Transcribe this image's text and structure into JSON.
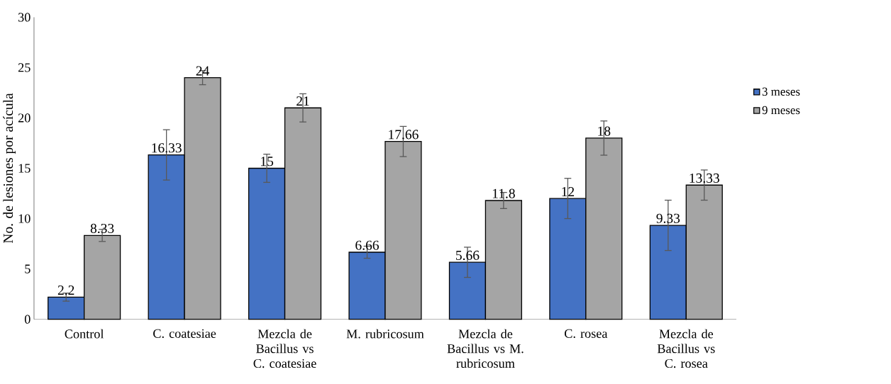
{
  "chart_data": {
    "type": "bar",
    "ylabel": "No. de lesiones por acícula",
    "categories": [
      "Control",
      "C. coatesiae",
      "Mezcla de Bacillus vs C. coatesiae",
      "M. rubricosum",
      "Mezcla de Bacillus vs M. rubricosum",
      "C. rosea",
      "Mezcla de Bacillus vs C. rosea"
    ],
    "series": [
      {
        "name": "3 meses",
        "color": "#4472c4",
        "values": [
          2.2,
          16.33,
          15,
          6.66,
          5.66,
          12,
          9.33
        ],
        "errors": [
          0.4,
          2.5,
          1.4,
          0.6,
          1.5,
          2.0,
          2.5
        ]
      },
      {
        "name": "9 meses",
        "color": "#a5a5a5",
        "values": [
          8.33,
          24,
          21,
          17.66,
          11.8,
          18,
          13.33
        ],
        "errors": [
          0.6,
          0.7,
          1.4,
          1.5,
          0.8,
          1.7,
          1.5
        ]
      }
    ],
    "ylim": [
      0,
      30
    ],
    "yticks": [
      0,
      5,
      10,
      15,
      20,
      25,
      30
    ],
    "data_labels": true,
    "legend": "right",
    "grid": false
  }
}
